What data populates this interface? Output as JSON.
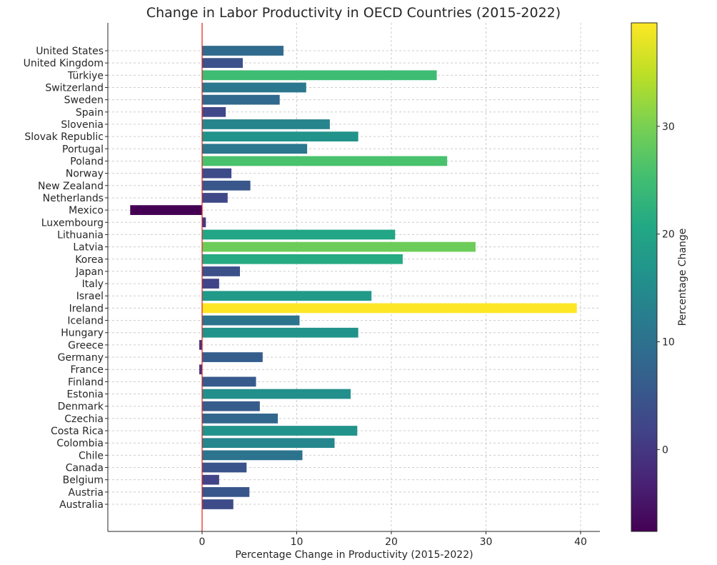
{
  "chart_data": {
    "type": "bar",
    "orientation": "horizontal",
    "title": "Change in Labor Productivity in OECD Countries (2015-2022)",
    "xlabel": "Percentage Change in Productivity (2015-2022)",
    "ylabel": "",
    "xlim": [
      -10,
      42
    ],
    "xticks": [
      0,
      10,
      20,
      30,
      40
    ],
    "grid": true,
    "reference_line": {
      "x": 0,
      "color": "#e31a1c"
    },
    "categories": [
      "Australia",
      "Austria",
      "Belgium",
      "Canada",
      "Chile",
      "Colombia",
      "Costa Rica",
      "Czechia",
      "Denmark",
      "Estonia",
      "Finland",
      "France",
      "Germany",
      "Greece",
      "Hungary",
      "Iceland",
      "Ireland",
      "Israel",
      "Italy",
      "Japan",
      "Korea",
      "Latvia",
      "Lithuania",
      "Luxembourg",
      "Mexico",
      "Netherlands",
      "New Zealand",
      "Norway",
      "Poland",
      "Portugal",
      "Slovak Republic",
      "Slovenia",
      "Spain",
      "Sweden",
      "Switzerland",
      "Türkiye",
      "United Kingdom",
      "United States"
    ],
    "values": [
      3.3,
      5.0,
      1.8,
      4.7,
      10.6,
      14.0,
      16.4,
      8.0,
      6.1,
      15.7,
      5.7,
      -0.3,
      6.4,
      -0.3,
      16.5,
      10.3,
      39.6,
      17.9,
      1.8,
      4.0,
      21.2,
      28.9,
      20.4,
      0.4,
      -7.6,
      2.7,
      5.1,
      3.1,
      25.9,
      11.1,
      16.5,
      13.5,
      2.5,
      8.2,
      11.0,
      24.8,
      4.3,
      8.6
    ],
    "colorbar": {
      "label": "Percentage Change",
      "range": [
        -7.6,
        39.6
      ],
      "ticks": [
        0,
        10,
        20,
        30
      ],
      "colormap": "viridis"
    }
  }
}
